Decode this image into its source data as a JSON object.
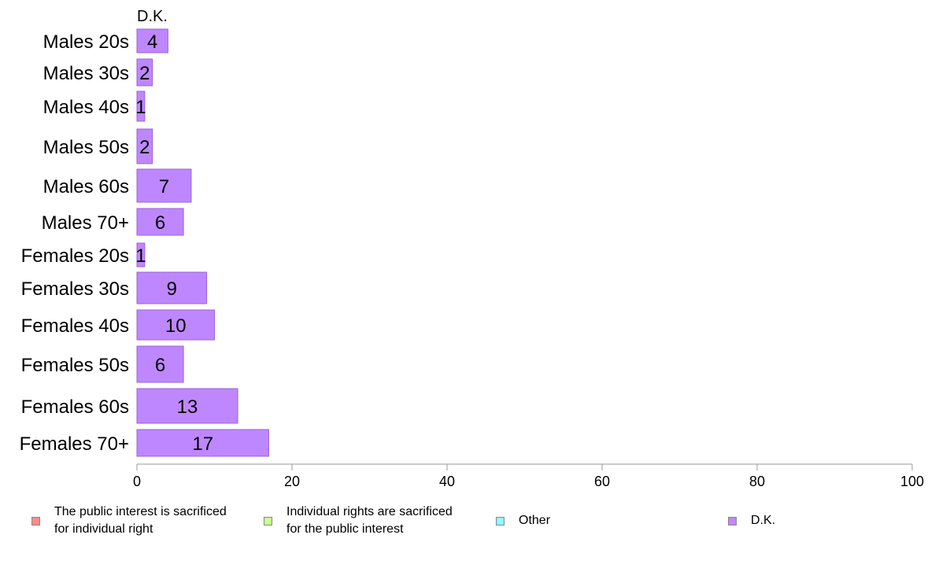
{
  "chart_data": {
    "type": "bar",
    "orientation": "horizontal",
    "series_title": "D.K.",
    "categories": [
      "Males 20s",
      "Males 30s",
      "Males 40s",
      "Males 50s",
      "Males 60s",
      "Males 70+",
      "Females 20s",
      "Females 30s",
      "Females 40s",
      "Females 50s",
      "Females 60s",
      "Females 70+"
    ],
    "series": [
      {
        "name": "D.K.",
        "color": "#bf87ff",
        "values": [
          4,
          2,
          1,
          2,
          7,
          6,
          1,
          9,
          10,
          6,
          13,
          17
        ]
      }
    ],
    "xlim": [
      0,
      100
    ],
    "xticks": [
      0,
      20,
      40,
      60,
      80,
      100
    ],
    "grid": false,
    "legend_position": "bottom"
  },
  "legend": {
    "items": [
      {
        "label": "The public interest is sacrificed\nfor individual right",
        "color": "#ff8c8c"
      },
      {
        "label": "Individual rights are sacrificed\nfor the public interest",
        "color": "#ccff8c"
      },
      {
        "label": "Other",
        "color": "#8cffff"
      },
      {
        "label": "D.K.",
        "color": "#bf87ff"
      }
    ]
  }
}
